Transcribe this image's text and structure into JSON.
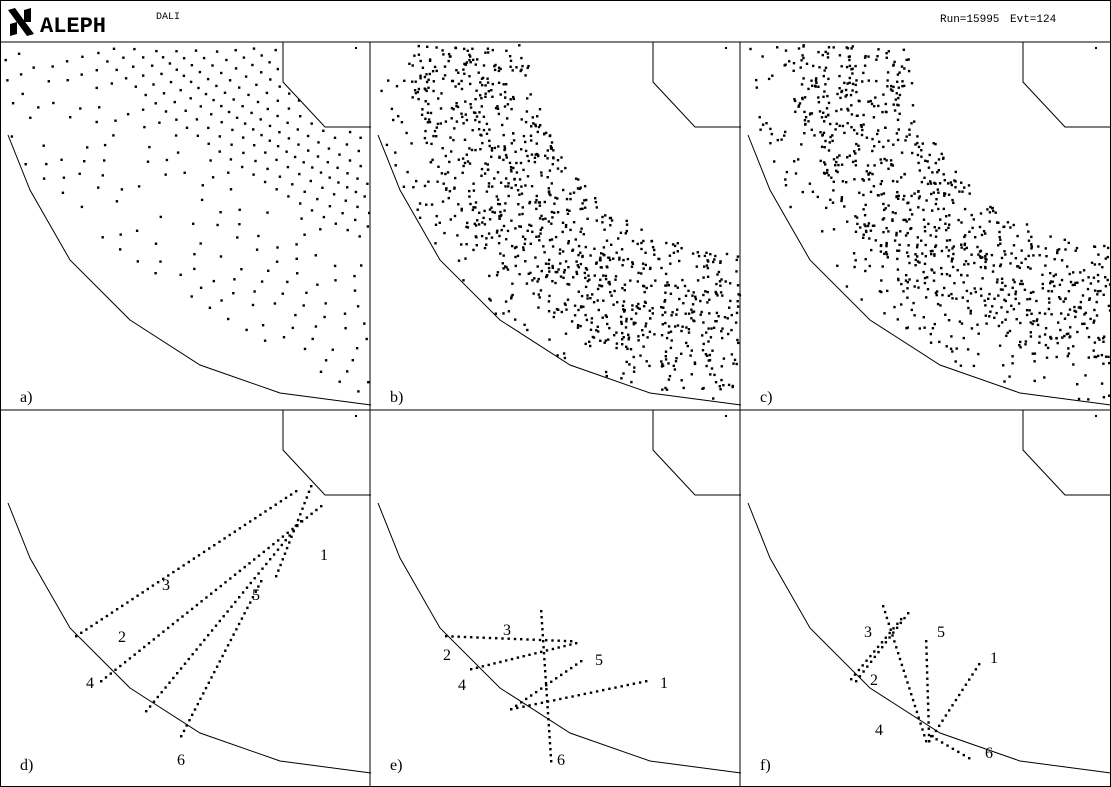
{
  "header": {
    "logo": "ALEPH",
    "program": "DALI",
    "run": "Run=15995",
    "event": "Evt=124"
  },
  "panels": [
    {
      "label": "a)"
    },
    {
      "label": "b)"
    },
    {
      "label": "c)"
    },
    {
      "label": "d)",
      "track_labels": [
        "1",
        "2",
        "3",
        "4",
        "5",
        "6"
      ]
    },
    {
      "label": "e)",
      "track_labels": [
        "1",
        "2",
        "3",
        "4",
        "5",
        "6"
      ]
    },
    {
      "label": "f)",
      "track_labels": [
        "1",
        "2",
        "3",
        "4",
        "5",
        "6"
      ]
    }
  ]
}
